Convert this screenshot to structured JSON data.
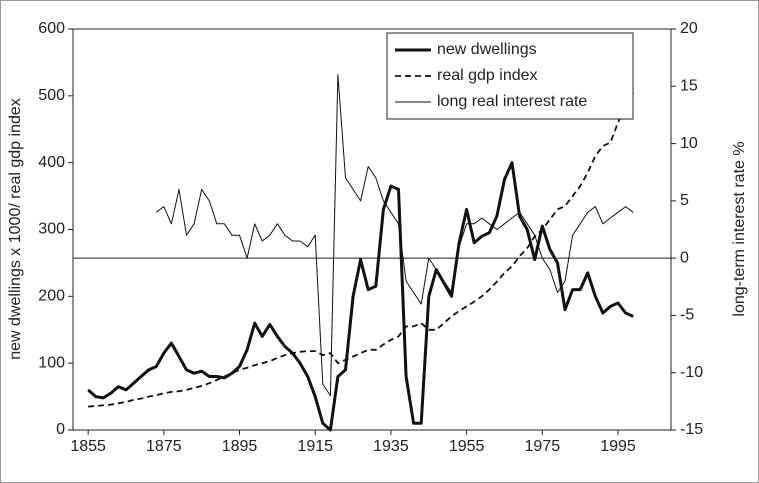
{
  "chart_data": {
    "type": "line",
    "y_label": "new dwellings x 1000/ real gdp index",
    "y2_label": "long-term interest rate %",
    "x": [
      1855,
      1857,
      1859,
      1861,
      1863,
      1865,
      1867,
      1869,
      1871,
      1873,
      1875,
      1877,
      1879,
      1881,
      1883,
      1885,
      1887,
      1889,
      1891,
      1893,
      1895,
      1897,
      1899,
      1901,
      1903,
      1905,
      1907,
      1909,
      1911,
      1913,
      1915,
      1917,
      1919,
      1921,
      1923,
      1925,
      1927,
      1929,
      1931,
      1933,
      1935,
      1937,
      1939,
      1941,
      1943,
      1945,
      1947,
      1949,
      1951,
      1953,
      1955,
      1957,
      1959,
      1961,
      1963,
      1965,
      1967,
      1969,
      1971,
      1973,
      1975,
      1977,
      1979,
      1981,
      1983,
      1985,
      1987,
      1989,
      1991,
      1993,
      1995,
      1997,
      1999
    ],
    "series": [
      {
        "name": "new dwellings",
        "color": "#111111",
        "style": "thick",
        "values": [
          60,
          50,
          48,
          55,
          65,
          60,
          70,
          80,
          90,
          95,
          115,
          130,
          110,
          90,
          85,
          88,
          80,
          80,
          78,
          85,
          95,
          120,
          160,
          140,
          158,
          140,
          125,
          115,
          100,
          80,
          50,
          10,
          0,
          80,
          90,
          200,
          255,
          210,
          215,
          330,
          365,
          360,
          80,
          10,
          10,
          200,
          240,
          220,
          200,
          280,
          330,
          280,
          290,
          295,
          320,
          375,
          400,
          320,
          300,
          255,
          305,
          270,
          250,
          180,
          210,
          210,
          235,
          200,
          175,
          185,
          190,
          175,
          170
        ]
      },
      {
        "name": "real gdp index",
        "color": "#111111",
        "style": "dashed",
        "values": [
          35,
          36,
          37,
          38,
          40,
          42,
          45,
          47,
          50,
          52,
          55,
          57,
          58,
          60,
          63,
          66,
          70,
          75,
          80,
          85,
          90,
          93,
          97,
          100,
          103,
          108,
          112,
          115,
          117,
          118,
          118,
          112,
          115,
          100,
          105,
          110,
          115,
          120,
          120,
          128,
          135,
          140,
          155,
          155,
          160,
          150,
          150,
          160,
          170,
          178,
          185,
          192,
          200,
          210,
          222,
          235,
          245,
          260,
          272,
          290,
          300,
          315,
          330,
          335,
          350,
          365,
          385,
          410,
          425,
          430,
          460,
          485,
          505
        ]
      },
      {
        "name": "long real interest rate",
        "color": "#111111",
        "style": "thin",
        "axis": "y2",
        "values": [
          null,
          null,
          null,
          null,
          null,
          null,
          null,
          null,
          null,
          4,
          4.5,
          3,
          6,
          2,
          3,
          6,
          5,
          3,
          3,
          2,
          2,
          0,
          3,
          1.5,
          2,
          3,
          2,
          1.5,
          1.5,
          1,
          2,
          -11,
          -12,
          16,
          7,
          6,
          5,
          8,
          7,
          5,
          4,
          3,
          -2,
          -3,
          -4,
          0,
          -1,
          -2,
          -3,
          1,
          3,
          3,
          3.5,
          3,
          2.5,
          3,
          3.5,
          4,
          3,
          2,
          0,
          -1,
          -3,
          -2,
          2,
          3,
          4,
          4.5,
          3,
          3.5,
          4,
          4.5,
          4
        ]
      }
    ],
    "xlim": [
      1851,
      2009
    ],
    "xticks": [
      1855,
      1875,
      1895,
      1915,
      1935,
      1955,
      1975,
      1995
    ],
    "ylim": [
      0,
      600
    ],
    "yticks": [
      0,
      100,
      200,
      300,
      400,
      500,
      600
    ],
    "y2lim": [
      -15,
      20
    ],
    "y2ticks": [
      -15,
      -10,
      -5,
      0,
      5,
      10,
      15,
      20
    ],
    "legend": "upper right"
  }
}
